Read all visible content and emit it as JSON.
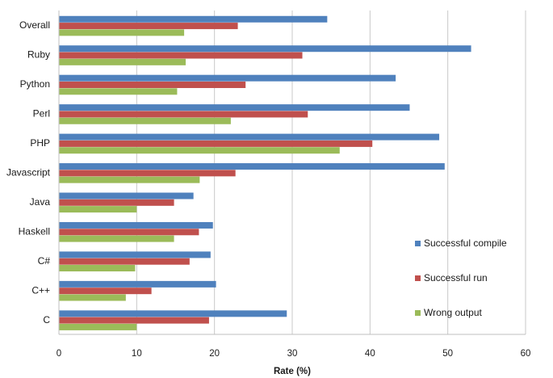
{
  "chart_data": {
    "type": "bar",
    "orientation": "horizontal",
    "title": "",
    "xlabel": "Rate (%)",
    "ylabel": "",
    "xlim": [
      0,
      60
    ],
    "xticks": [
      0,
      10,
      20,
      30,
      40,
      50,
      60
    ],
    "grid": "vertical",
    "legend_position": "right",
    "categories": [
      "Overall",
      "Ruby",
      "Python",
      "Perl",
      "PHP",
      "Javascript",
      "Java",
      "Haskell",
      "C#",
      "C++",
      "C"
    ],
    "series": [
      {
        "name": "Successful compile",
        "color": "#4f81bd",
        "values": [
          34.5,
          53.0,
          43.3,
          45.1,
          48.9,
          49.6,
          17.3,
          19.8,
          19.5,
          20.2,
          29.3
        ]
      },
      {
        "name": "Successful run",
        "color": "#c0504d",
        "values": [
          23.0,
          31.3,
          24.0,
          32.0,
          40.3,
          22.7,
          14.8,
          18.0,
          16.8,
          11.9,
          19.3
        ]
      },
      {
        "name": "Wrong output",
        "color": "#9bbb59",
        "values": [
          16.1,
          16.3,
          15.2,
          22.1,
          36.1,
          18.1,
          10.0,
          14.8,
          9.8,
          8.6,
          10.0
        ]
      }
    ]
  }
}
